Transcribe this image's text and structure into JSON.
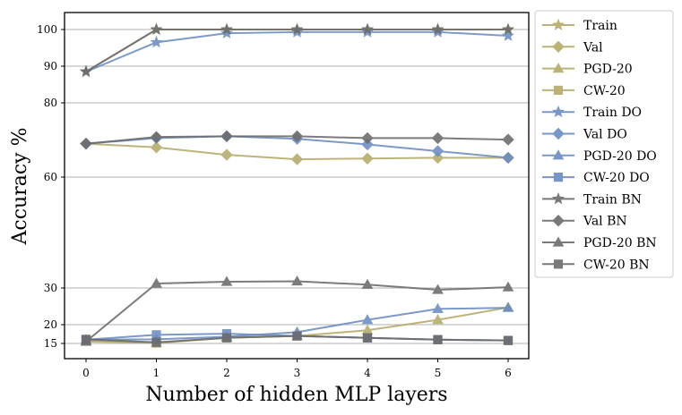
{
  "chart_data": {
    "type": "line",
    "title": "",
    "xlabel": "Number of hidden MLP layers",
    "ylabel": "Accuracy %",
    "x": [
      0,
      1,
      2,
      3,
      4,
      5,
      6
    ],
    "xticks": [
      "0",
      "1",
      "2",
      "3",
      "4",
      "5",
      "6"
    ],
    "yticks": [
      15,
      20,
      30,
      60,
      80,
      90,
      100
    ],
    "ylim": [
      11,
      105
    ],
    "grid": "horizontal",
    "legend_position": "outside-right",
    "colors": {
      "plain": "#b5aa6a",
      "dropout": "#6a8cc0",
      "batchnorm": "#6b6b6b"
    },
    "series": [
      {
        "name": "Train",
        "group": "plain",
        "marker": "star",
        "values": [
          88.5,
          100,
          100,
          100,
          100,
          100,
          100
        ]
      },
      {
        "name": "Val",
        "group": "plain",
        "marker": "diamond",
        "values": [
          69,
          68,
          66,
          64.8,
          65,
          65.2,
          65.2
        ]
      },
      {
        "name": "PGD-20",
        "group": "plain",
        "marker": "triangle",
        "values": [
          15.5,
          15.2,
          16.5,
          17,
          18.5,
          21.3,
          24.7
        ]
      },
      {
        "name": "CW-20",
        "group": "plain",
        "marker": "square",
        "values": [
          16,
          15.1,
          16.5,
          17,
          16.5,
          16,
          15.8
        ]
      },
      {
        "name": "Train DO",
        "group": "dropout",
        "marker": "star",
        "values": [
          88.5,
          96.5,
          99,
          99.3,
          99.3,
          99.3,
          98.3
        ]
      },
      {
        "name": "Val DO",
        "group": "dropout",
        "marker": "diamond",
        "values": [
          69,
          70.5,
          71,
          70.3,
          68.8,
          67,
          65.2
        ]
      },
      {
        "name": "PGD-20 DO",
        "group": "dropout",
        "marker": "triangle",
        "values": [
          16,
          16.1,
          16.8,
          18,
          21.3,
          24.3,
          24.6
        ]
      },
      {
        "name": "CW-20 DO",
        "group": "dropout",
        "marker": "square",
        "values": [
          16,
          17.3,
          17.6,
          17,
          16.5,
          16,
          15.8
        ]
      },
      {
        "name": "Train BN",
        "group": "batchnorm",
        "marker": "star",
        "values": [
          88.5,
          100,
          100,
          100,
          100,
          100,
          100
        ]
      },
      {
        "name": "Val BN",
        "group": "batchnorm",
        "marker": "diamond",
        "values": [
          69,
          70.8,
          71,
          71,
          70.5,
          70.5,
          70.1
        ]
      },
      {
        "name": "PGD-20 BN",
        "group": "batchnorm",
        "marker": "triangle",
        "values": [
          15.5,
          31.2,
          31.7,
          31.8,
          30.9,
          29.5,
          30.2
        ]
      },
      {
        "name": "CW-20 BN",
        "group": "batchnorm",
        "marker": "square",
        "values": [
          16.1,
          15.3,
          16.5,
          17,
          16.5,
          16,
          15.8
        ]
      }
    ]
  }
}
